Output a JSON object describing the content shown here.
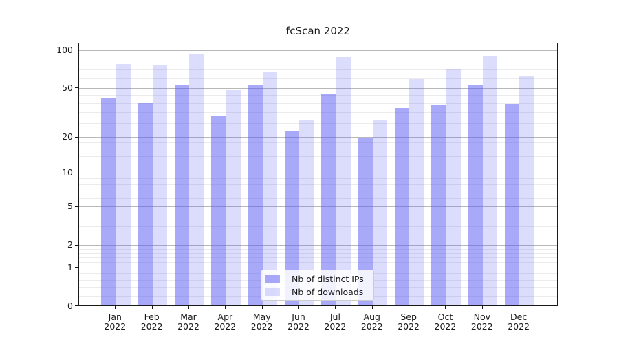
{
  "title": "fcScan 2022",
  "legend": {
    "items": [
      {
        "label": "Nb of distinct IPs",
        "color": "rgba(90,90,245,0.52)"
      },
      {
        "label": "Nb of downloads",
        "color": "rgba(90,90,245,0.21)"
      }
    ]
  },
  "chart_data": {
    "type": "bar",
    "title": "fcScan 2022",
    "categories": [
      "Jan 2022",
      "Feb 2022",
      "Mar 2022",
      "Apr 2022",
      "May 2022",
      "Jun 2022",
      "Jul 2022",
      "Aug 2022",
      "Sep 2022",
      "Oct 2022",
      "Nov 2022",
      "Dec 2022"
    ],
    "series": [
      {
        "name": "Nb of distinct IPs",
        "values": [
          42,
          39,
          54,
          30,
          53,
          23,
          45,
          20,
          35,
          37,
          53,
          38
        ]
      },
      {
        "name": "Nb of downloads",
        "values": [
          79,
          78,
          94,
          49,
          68,
          28,
          89,
          28,
          60,
          71,
          92,
          63
        ]
      }
    ],
    "xlabel": "",
    "ylabel": "",
    "yscale": "log1p",
    "ylim": [
      0,
      114
    ],
    "yticks": [
      0,
      1,
      2,
      5,
      10,
      20,
      50,
      100
    ],
    "minor_gridlines": [
      0.2,
      0.4,
      0.6,
      0.8,
      1.2,
      1.4,
      1.6,
      1.8,
      2.6,
      3.2,
      3.8,
      4.4,
      6,
      7,
      8,
      9,
      12,
      14,
      16,
      18,
      26,
      32,
      38,
      44,
      60,
      70,
      80,
      90
    ],
    "grid": "both",
    "legend_position": "lower center"
  },
  "colors": {
    "bar_dark": "rgba(90,90,245,0.52)",
    "bar_light": "rgba(90,90,245,0.21)",
    "major_grid": "#b8b8b8",
    "minor_grid": "#ebebeb",
    "axis": "#1a1a1a"
  }
}
